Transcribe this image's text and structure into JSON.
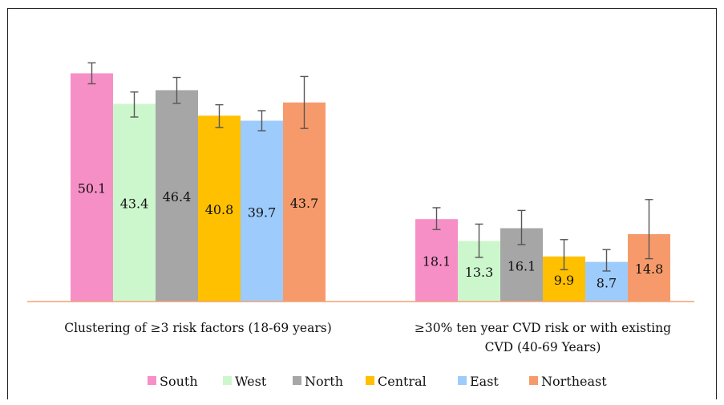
{
  "chart_data": {
    "type": "bar",
    "categories": [
      "Clustering of ≥3 risk factors (18-69 years)",
      "≥30%  ten year CVD risk or with existing CVD (40-69 Years)"
    ],
    "category_lines": [
      [
        "Clustering of ≥3 risk factors (18-69 years)"
      ],
      [
        "≥30%  ten year CVD risk or with existing",
        "CVD (40-69 Years)"
      ]
    ],
    "series": [
      {
        "name": "South",
        "color": "#f78fc7",
        "values": [
          50.1,
          18.1
        ],
        "error_low": [
          47.8,
          15.8
        ],
        "error_high": [
          52.4,
          20.6
        ],
        "labels": [
          "50.1",
          "18.1"
        ]
      },
      {
        "name": "West",
        "color": "#ccf7cc",
        "values": [
          43.4,
          13.3
        ],
        "error_low": [
          40.5,
          9.7
        ],
        "error_high": [
          46.0,
          17.0
        ],
        "labels": [
          "43.4",
          "13.3"
        ]
      },
      {
        "name": "North",
        "color": "#a6a6a6",
        "values": [
          46.4,
          16.1
        ],
        "error_low": [
          43.5,
          12.5
        ],
        "error_high": [
          49.2,
          20.0
        ],
        "labels": [
          "46.4",
          "16.1"
        ]
      },
      {
        "name": "Central",
        "color": "#ffc000",
        "values": [
          40.8,
          9.9
        ],
        "error_low": [
          38.2,
          7.0
        ],
        "error_high": [
          43.2,
          13.6
        ],
        "labels": [
          "40.8",
          "9.9"
        ]
      },
      {
        "name": "East",
        "color": "#9dcbfb",
        "values": [
          39.7,
          8.7
        ],
        "error_low": [
          37.5,
          6.7
        ],
        "error_high": [
          41.9,
          11.4
        ],
        "labels": [
          "39.7",
          "8.7"
        ]
      },
      {
        "name": "Northeast",
        "color": "#f79a6b",
        "values": [
          43.7,
          14.8
        ],
        "error_low": [
          38.0,
          9.4
        ],
        "error_high": [
          49.4,
          22.4
        ],
        "labels": [
          "43.7",
          "14.8"
        ]
      }
    ],
    "ylim": [
      0,
      55
    ],
    "axis_color": "#f0a070",
    "error_bar_color": "#555555",
    "legend_position": "bottom",
    "grid": false,
    "title": "",
    "xlabel": "",
    "ylabel": ""
  }
}
